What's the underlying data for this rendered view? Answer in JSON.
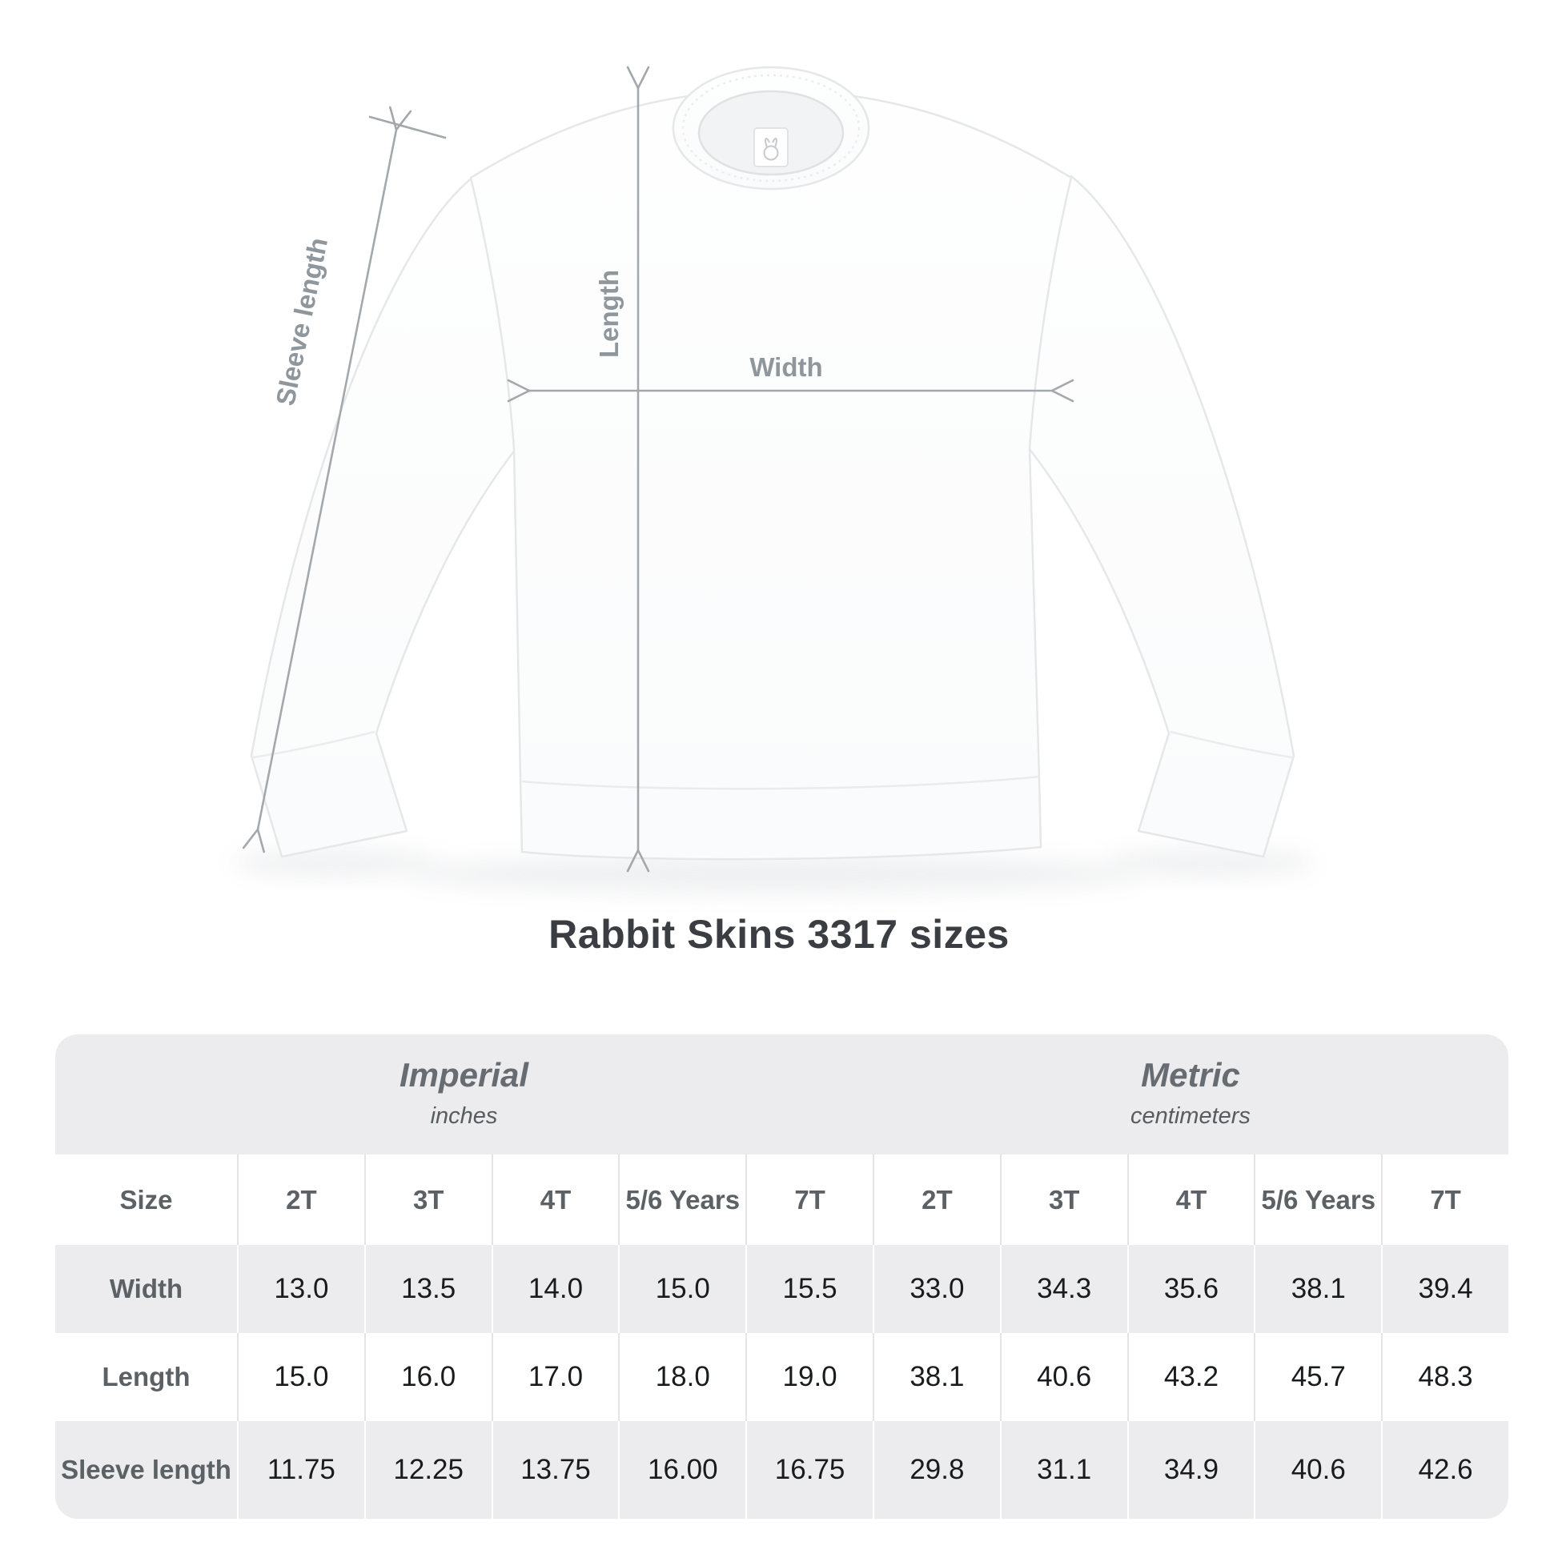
{
  "diagram": {
    "labels": {
      "sleeve_length": "Sleeve length",
      "length": "Length",
      "width": "Width"
    },
    "colors": {
      "arrow": "#a3a8ad",
      "label": "#8f969c",
      "garment_outline": "#e6e7e9"
    }
  },
  "title": "Rabbit Skins 3317 sizes",
  "table": {
    "unit_groups": [
      {
        "name": "Imperial",
        "unit": "inches"
      },
      {
        "name": "Metric",
        "unit": "centimeters"
      }
    ],
    "size_header": "Size",
    "columns": [
      "2T",
      "3T",
      "4T",
      "5/6 Years",
      "7T",
      "2T",
      "3T",
      "4T",
      "5/6 Years",
      "7T"
    ],
    "rows": [
      {
        "label": "Width",
        "values": [
          "13.0",
          "13.5",
          "14.0",
          "15.0",
          "15.5",
          "33.0",
          "34.3",
          "35.6",
          "38.1",
          "39.4"
        ]
      },
      {
        "label": "Length",
        "values": [
          "15.0",
          "16.0",
          "17.0",
          "18.0",
          "19.0",
          "38.1",
          "40.6",
          "43.2",
          "45.7",
          "48.3"
        ]
      },
      {
        "label": "Sleeve length",
        "values": [
          "11.75",
          "12.25",
          "13.75",
          "16.00",
          "16.75",
          "29.8",
          "31.1",
          "34.9",
          "40.6",
          "42.6"
        ]
      }
    ]
  },
  "chart_data": {
    "type": "table",
    "title": "Rabbit Skins 3317 sizes",
    "unit_groups": [
      "Imperial (inches)",
      "Metric (centimeters)"
    ],
    "sizes": [
      "2T",
      "3T",
      "4T",
      "5/6 Years",
      "7T"
    ],
    "measurements": {
      "width_in": [
        13.0,
        13.5,
        14.0,
        15.0,
        15.5
      ],
      "length_in": [
        15.0,
        16.0,
        17.0,
        18.0,
        19.0
      ],
      "sleeve_in": [
        11.75,
        12.25,
        13.75,
        16.0,
        16.75
      ],
      "width_cm": [
        33.0,
        34.3,
        35.6,
        38.1,
        39.4
      ],
      "length_cm": [
        38.1,
        40.6,
        43.2,
        45.7,
        48.3
      ],
      "sleeve_cm": [
        29.8,
        31.1,
        34.9,
        40.6,
        42.6
      ]
    }
  }
}
